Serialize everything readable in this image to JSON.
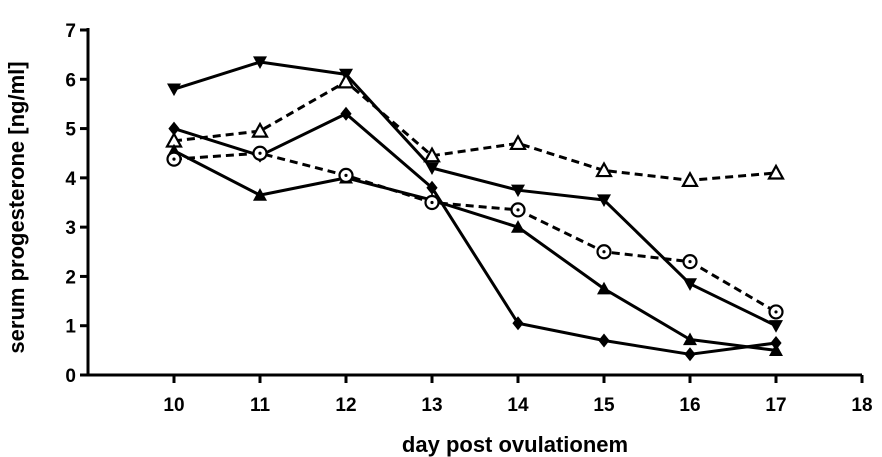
{
  "chart_data": {
    "type": "line",
    "title": "",
    "xlabel": "day post ovulationem",
    "ylabel": "serum progesterone [ng/ml]",
    "xlim": [
      9,
      18
    ],
    "ylim": [
      0,
      7
    ],
    "xticks": [
      10,
      11,
      12,
      13,
      14,
      15,
      16,
      17,
      18
    ],
    "yticks": [
      0,
      1,
      2,
      3,
      4,
      5,
      6,
      7
    ],
    "grid": false,
    "legend": "none",
    "color": "#000000",
    "series": [
      {
        "marker": "triangle-down-filled",
        "line_style": "solid",
        "points": [
          [
            10,
            5.8
          ],
          [
            11,
            6.35
          ],
          [
            12,
            6.1
          ],
          [
            13,
            4.2
          ],
          [
            14,
            3.75
          ],
          [
            15,
            3.55
          ],
          [
            16,
            1.85
          ],
          [
            17,
            1.0
          ]
        ]
      },
      {
        "marker": "triangle-up-open",
        "line_style": "dashed",
        "points": [
          [
            10,
            4.75
          ],
          [
            11,
            4.95
          ],
          [
            12,
            5.95
          ],
          [
            13,
            4.45
          ],
          [
            14,
            4.7
          ],
          [
            15,
            4.15
          ],
          [
            16,
            3.95
          ],
          [
            17,
            4.1
          ]
        ]
      },
      {
        "marker": "diamond-filled",
        "line_style": "solid",
        "points": [
          [
            10,
            5.0
          ],
          [
            11,
            4.45
          ],
          [
            12,
            5.3
          ],
          [
            13,
            3.8
          ],
          [
            14,
            1.05
          ],
          [
            15,
            0.7
          ],
          [
            16,
            0.42
          ],
          [
            17,
            0.65
          ]
        ]
      },
      {
        "marker": "triangle-up-filled",
        "line_style": "solid",
        "points": [
          [
            10,
            4.55
          ],
          [
            11,
            3.65
          ],
          [
            12,
            4.0
          ],
          [
            13,
            3.55
          ],
          [
            14,
            3.0
          ],
          [
            15,
            1.75
          ],
          [
            16,
            0.72
          ],
          [
            17,
            0.5
          ]
        ]
      },
      {
        "marker": "circle-open-dot",
        "line_style": "dashed",
        "points": [
          [
            10,
            4.38
          ],
          [
            11,
            4.5
          ],
          [
            12,
            4.05
          ],
          [
            13,
            3.5
          ],
          [
            14,
            3.35
          ],
          [
            15,
            2.5
          ],
          [
            16,
            2.3
          ],
          [
            17,
            1.28
          ]
        ]
      }
    ]
  }
}
